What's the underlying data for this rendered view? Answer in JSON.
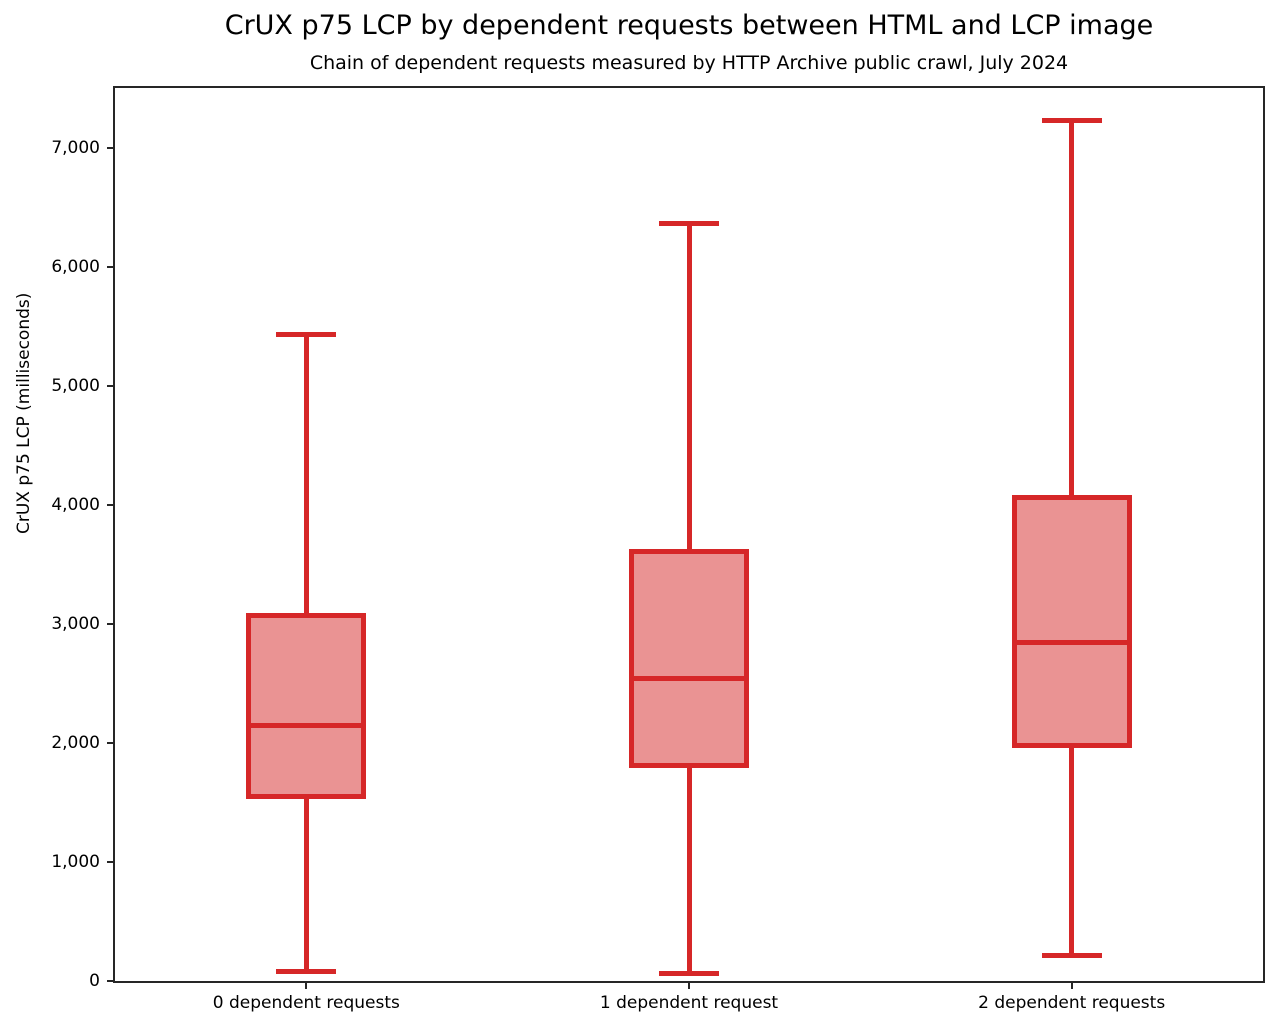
{
  "title": "CrUX p75 LCP by dependent requests between HTML and LCP image",
  "subtitle": "Chain of dependent requests measured by HTTP Archive public crawl, July 2024",
  "chart_data": {
    "type": "boxplot",
    "title": "CrUX p75 LCP by dependent requests between HTML and LCP image",
    "subtitle": "Chain of dependent requests measured by HTTP Archive public crawl, July 2024",
    "xlabel": "",
    "ylabel": "CrUX p75 LCP (milliseconds)",
    "ylim": [
      0,
      7500
    ],
    "grid": false,
    "legend": null,
    "yticks": [
      {
        "value": 0,
        "label": "0"
      },
      {
        "value": 1000,
        "label": "1,000"
      },
      {
        "value": 2000,
        "label": "2,000"
      },
      {
        "value": 3000,
        "label": "3,000"
      },
      {
        "value": 4000,
        "label": "4,000"
      },
      {
        "value": 5000,
        "label": "5,000"
      },
      {
        "value": 6000,
        "label": "6,000"
      },
      {
        "value": 7000,
        "label": "7,000"
      }
    ],
    "categories": [
      "0 dependent requests",
      "1 dependent request",
      "2 dependent requests"
    ],
    "series": [
      {
        "category": "0 dependent requests",
        "whisker_low": 80,
        "q1": 1530,
        "median": 2150,
        "q3": 3090,
        "whisker_high": 5430
      },
      {
        "category": "1 dependent request",
        "whisker_low": 60,
        "q1": 1790,
        "median": 2540,
        "q3": 3630,
        "whisker_high": 6360
      },
      {
        "category": "2 dependent requests",
        "whisker_low": 210,
        "q1": 1960,
        "median": 2840,
        "q3": 4080,
        "whisker_high": 7230
      }
    ],
    "colors": {
      "box_stroke": "#d62728",
      "box_fill": "#ea9393",
      "axis": "#262626",
      "text": "#000000"
    }
  }
}
